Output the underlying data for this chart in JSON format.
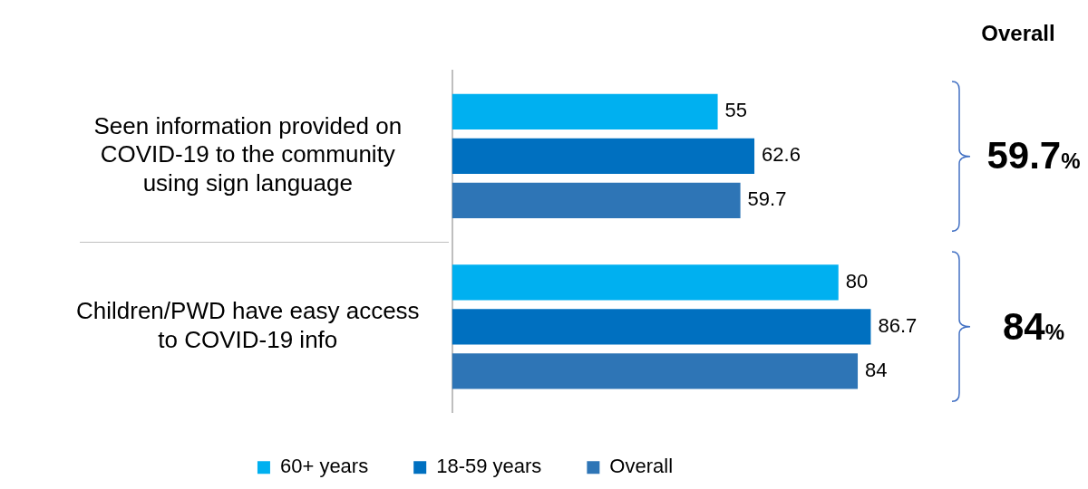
{
  "chart_data": {
    "type": "bar",
    "orientation": "horizontal",
    "categories": [
      "Seen information provided on COVID-19 to the community using sign language",
      "Children/PWD have easy access to COVID-19 info"
    ],
    "series": [
      {
        "name": "60+ years",
        "color": "#00b0f0",
        "values": [
          55,
          80
        ]
      },
      {
        "name": "18-59 years",
        "color": "#0070c0",
        "values": [
          62.6,
          86.7
        ]
      },
      {
        "name": "Overall",
        "color": "#2e75b6",
        "values": [
          59.7,
          84
        ]
      }
    ],
    "data_labels": true,
    "grid": false,
    "legend": "bottom",
    "annotations": [
      "Overall",
      "59.7%",
      "84%"
    ]
  }
}
